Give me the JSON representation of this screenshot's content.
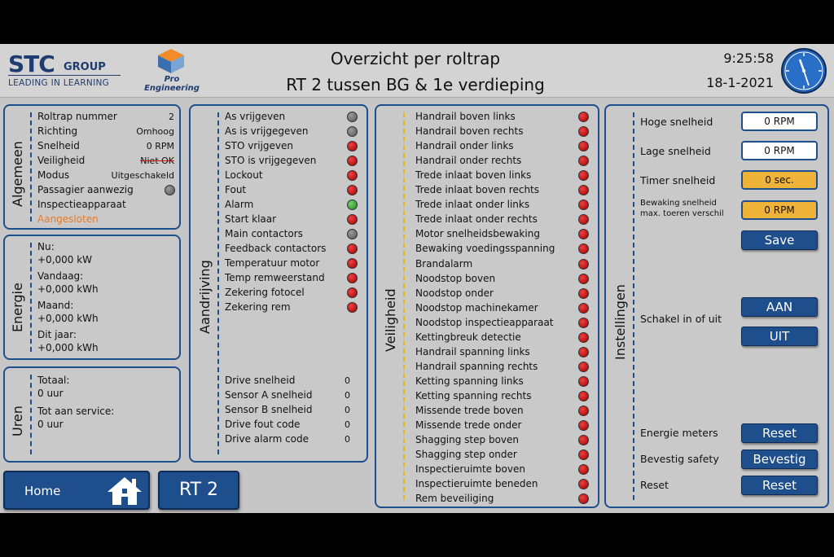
{
  "header": {
    "brand": "STC",
    "group": "GROUP",
    "tagline": "LEADING IN LEARNING",
    "partner": "Pro Engineering",
    "title": "Overzicht per roltrap",
    "subtitle": "RT 2 tussen BG & 1e verdieping",
    "time": "9:25:58",
    "date": "18-1-2021"
  },
  "algemeen": {
    "label": "Algemeen",
    "rows": [
      {
        "label": "Roltrap nummer",
        "value": "2"
      },
      {
        "label": "Richting",
        "value": "Omhoog"
      },
      {
        "label": "Snelheid",
        "value": "0 RPM"
      },
      {
        "label": "Veiligheid",
        "value": "Niet OK"
      },
      {
        "label": "Modus",
        "value": "Uitgeschakeld"
      },
      {
        "label": "Passagier aanwezig",
        "value": ""
      },
      {
        "label": "Inspectieapparaat",
        "value": ""
      }
    ],
    "status": "Aangesloten"
  },
  "energie": {
    "label": "Energie",
    "items": [
      {
        "label": "Nu:",
        "value": "+0,000 kW"
      },
      {
        "label": "Vandaag:",
        "value": "+0,000 kWh"
      },
      {
        "label": "Maand:",
        "value": "+0,000 kWh"
      },
      {
        "label": "Dit jaar:",
        "value": "+0,000 kWh"
      }
    ]
  },
  "uren": {
    "label": "Uren",
    "items": [
      {
        "label": "Totaal:",
        "value": "0 uur"
      },
      {
        "label": "Tot aan service:",
        "value": "0 uur"
      }
    ]
  },
  "aandrijving": {
    "label": "Aandrijving",
    "signals": [
      {
        "label": "As vrijgeven",
        "state": "grey"
      },
      {
        "label": "As is vrijgegeven",
        "state": "grey"
      },
      {
        "label": "STO vrijgeven",
        "state": "red"
      },
      {
        "label": "STO is vrijgegeven",
        "state": "red"
      },
      {
        "label": "Lockout",
        "state": "red"
      },
      {
        "label": "Fout",
        "state": "red"
      },
      {
        "label": "Alarm",
        "state": "green"
      },
      {
        "label": "Start klaar",
        "state": "red"
      },
      {
        "label": "Main contactors",
        "state": "grey"
      },
      {
        "label": "Feedback contactors",
        "state": "red"
      },
      {
        "label": "Temperatuur motor",
        "state": "red"
      },
      {
        "label": "Temp remweerstand",
        "state": "red"
      },
      {
        "label": "Zekering fotocel",
        "state": "red"
      },
      {
        "label": "Zekering rem",
        "state": "red"
      }
    ],
    "values": [
      {
        "label": "Drive snelheid",
        "value": "0"
      },
      {
        "label": "Sensor A snelheid",
        "value": "0"
      },
      {
        "label": "Sensor B snelheid",
        "value": "0"
      },
      {
        "label": "Drive fout code",
        "value": "0"
      },
      {
        "label": "Drive alarm code",
        "value": "0"
      }
    ]
  },
  "veiligheid": {
    "label": "Veiligheid",
    "signals": [
      "Handrail boven links",
      "Handrail boven rechts",
      "Handrail onder links",
      "Handrail onder rechts",
      "Trede inlaat boven links",
      "Trede inlaat boven rechts",
      "Trede inlaat onder links",
      "Trede inlaat onder rechts",
      "Motor snelheidsbewaking",
      "Bewaking voedingsspanning",
      "Brandalarm",
      "Noodstop boven",
      "Noodstop onder",
      "Noodstop machinekamer",
      "Noodstop inspectieapparaat",
      "Kettingbreuk detectie",
      "Handrail spanning links",
      "Handrail spanning rechts",
      "Ketting spanning links",
      "Ketting spanning rechts",
      "Missende trede boven",
      "Missende trede onder",
      "Shagging step boven",
      "Shagging step onder",
      "Inspectieruimte boven",
      "Inspectieruimte beneden",
      "Rem beveiliging"
    ],
    "led_color": "#c00000"
  },
  "instellingen": {
    "label": "Instellingen",
    "hoge_label": "Hoge snelheid",
    "hoge_value": "0 RPM",
    "lage_label": "Lage snelheid",
    "lage_value": "0 RPM",
    "timer_label": "Timer snelheid",
    "timer_value": "0 sec.",
    "bewaking_label1": "Bewaking snelheid",
    "bewaking_label2": "max. toeren verschil",
    "bewaking_value": "0 RPM",
    "save_label": "Save",
    "schakel_label": "Schakel in of uit",
    "aan_label": "AAN",
    "uit_label": "UIT",
    "energie_label": "Energie meters",
    "energie_btn": "Reset",
    "safety_label": "Bevestig safety",
    "safety_btn": "Bevestig",
    "reset_label": "Reset",
    "reset_btn": "Reset"
  },
  "footer": {
    "home_label": "Home",
    "rt_label": "RT 2"
  },
  "colors": {
    "accent": "#1f4e8c",
    "background": "#c6c6c6",
    "warning": "#f0b33a",
    "orange_text": "#f07a1a"
  }
}
